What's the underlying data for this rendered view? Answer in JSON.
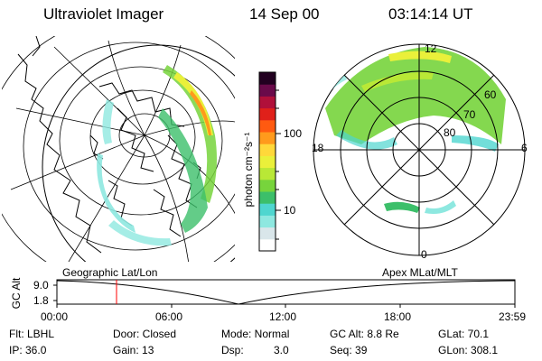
{
  "header": {
    "instrument": "Ultraviolet Imager",
    "date": "14 Sep 00",
    "time": "03:14:14 UT"
  },
  "colorbar": {
    "label": "photon cm⁻²s⁻¹",
    "ticks": [
      "100",
      "10"
    ],
    "scale": "log",
    "colors": [
      "#ffffff",
      "#d9e6ea",
      "#8ee8e0",
      "#4fd6cf",
      "#3cbf6a",
      "#77d43c",
      "#b9e836",
      "#eaf03a",
      "#ffd83a",
      "#ff9a1c",
      "#ff5a10",
      "#e0201a",
      "#b0103a",
      "#6a0a4a",
      "#220020"
    ]
  },
  "panels": {
    "geo_label": "Geographic Lat/Lon",
    "apex_label": "Apex MLat/MLT",
    "polar": {
      "mlt_labels": [
        "12",
        "6",
        "0",
        "18"
      ],
      "lat_labels": [
        "60",
        "70",
        "80"
      ]
    }
  },
  "timeline": {
    "ylabel": "GC Alt",
    "ytick_top": "9.0",
    "ytick_bottom": "1.8",
    "xticks": [
      "00:00",
      "06:00",
      "12:00",
      "18:00",
      "23:59"
    ],
    "marker_color": "#ff0000"
  },
  "info": {
    "flt": "Flt: LBHL",
    "ip": "IP: 36.0",
    "door": "Door: Closed",
    "gain": "Gain: 13",
    "mode": "Mode: Normal",
    "dsp_label": "Dsp:",
    "dsp_value": "3.0",
    "gcalt": "GC Alt: 8.8 Re",
    "seq": "Seq: 39",
    "glat": "GLat: 70.1",
    "glon": "GLon: 308.1"
  }
}
